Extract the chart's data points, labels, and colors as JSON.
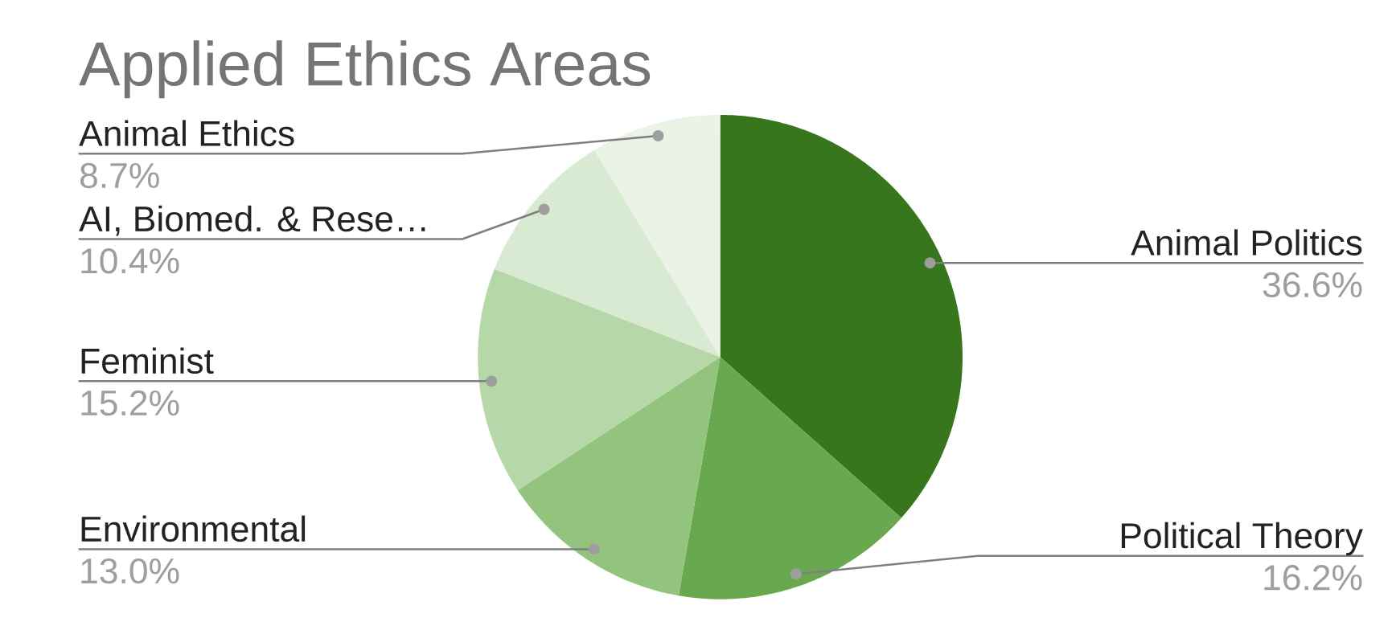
{
  "chart_data": {
    "type": "pie",
    "title": "Applied Ethics Areas",
    "categories": [
      "Animal Politics",
      "Political Theory",
      "Environmental",
      "Feminist",
      "AI, Biomed. & Rese…",
      "Animal Ethics"
    ],
    "values": [
      36.6,
      16.2,
      13.0,
      15.2,
      10.4,
      8.7
    ],
    "value_labels": [
      "36.6%",
      "16.2%",
      "13.0%",
      "15.2%",
      "10.4%",
      "8.7%"
    ],
    "colors": [
      "#38761d",
      "#6aa84f",
      "#93c47d",
      "#b6d7a8",
      "#d9ead3",
      "#eaf3e6"
    ]
  }
}
